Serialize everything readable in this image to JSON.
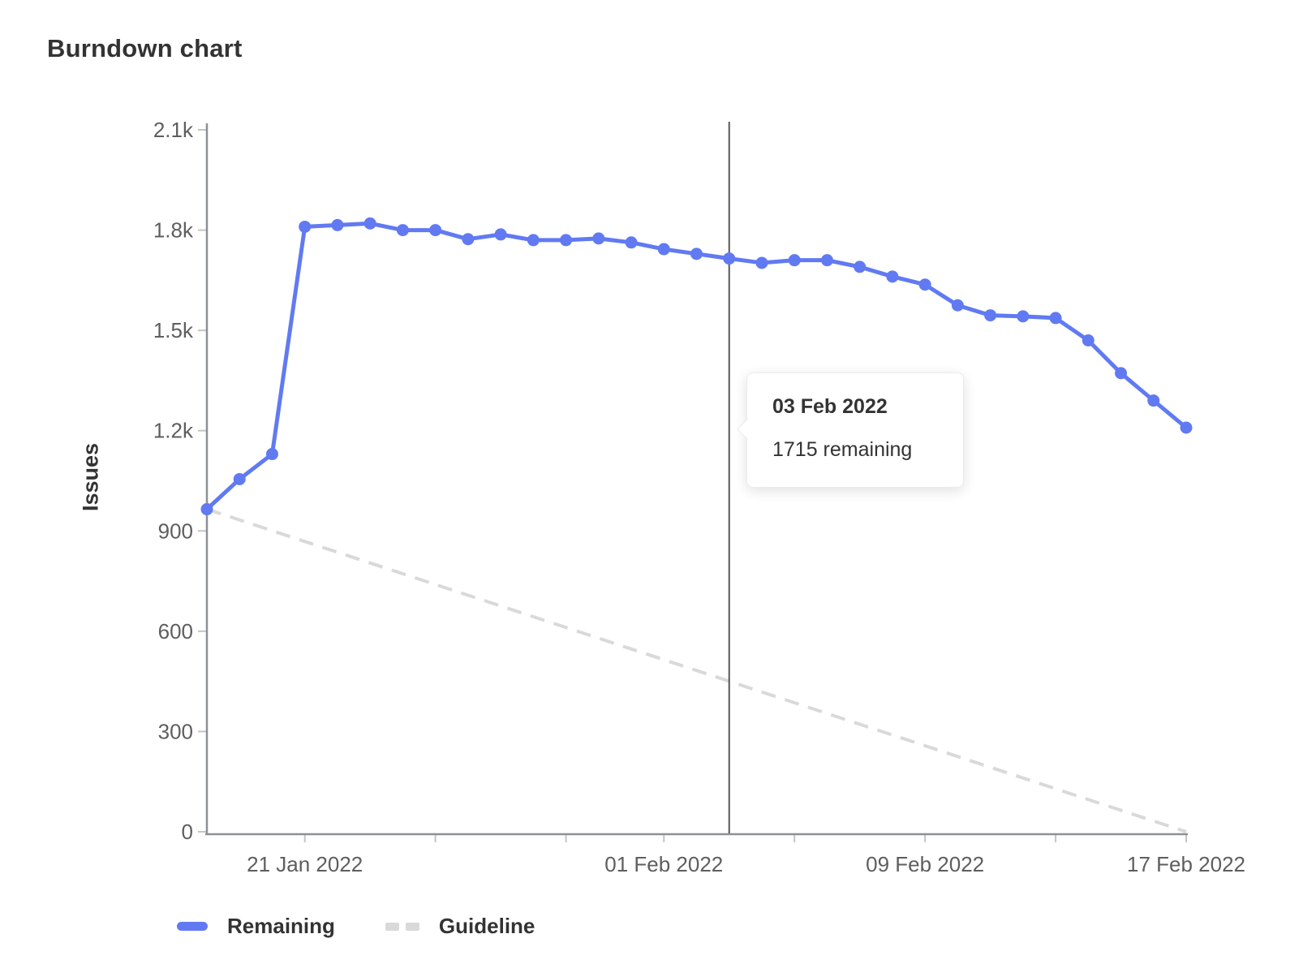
{
  "page": {
    "title": "Burndown chart"
  },
  "ylabel": "Issues",
  "legend": {
    "items": [
      {
        "label": "Remaining"
      },
      {
        "label": "Guideline"
      }
    ]
  },
  "tooltip": {
    "title": "03 Feb 2022",
    "body": "1715 remaining"
  },
  "hover": {
    "day_index": 16
  },
  "colors": {
    "series_blue": "#617af2",
    "guideline": "#d9d9d9",
    "axis": "#8d9096",
    "tick": "#c4c4c4",
    "tick_text": "#5e5e5e",
    "dark_text": "#333333",
    "hover_line": "#54565b"
  },
  "chart_data": {
    "type": "line",
    "title": "Burndown chart",
    "xlabel": "",
    "ylabel": "Issues",
    "ylim": [
      0,
      2100
    ],
    "grid": false,
    "legend_position": "bottom-left",
    "x_dates": [
      "2022-01-18",
      "2022-01-19",
      "2022-01-20",
      "2022-01-21",
      "2022-01-22",
      "2022-01-23",
      "2022-01-24",
      "2022-01-25",
      "2022-01-26",
      "2022-01-27",
      "2022-01-28",
      "2022-01-29",
      "2022-01-30",
      "2022-01-31",
      "2022-02-01",
      "2022-02-02",
      "2022-02-03",
      "2022-02-04",
      "2022-02-05",
      "2022-02-06",
      "2022-02-07",
      "2022-02-08",
      "2022-02-09",
      "2022-02-10",
      "2022-02-11",
      "2022-02-12",
      "2022-02-13",
      "2022-02-14",
      "2022-02-15",
      "2022-02-16",
      "2022-02-17"
    ],
    "series": [
      {
        "name": "Remaining",
        "style": "solid",
        "color": "#617af2",
        "values": [
          965,
          1055,
          1130,
          1810,
          1815,
          1820,
          1800,
          1800,
          1773,
          1787,
          1770,
          1770,
          1775,
          1763,
          1743,
          1729,
          1715,
          1702,
          1710,
          1710,
          1690,
          1661,
          1637,
          1575,
          1545,
          1542,
          1537,
          1470,
          1372,
          1290,
          1209
        ]
      },
      {
        "name": "Guideline",
        "style": "dashed",
        "color": "#d9d9d9",
        "x_indices": [
          0,
          30
        ],
        "values": [
          965,
          0
        ]
      }
    ],
    "yticks": [
      {
        "value": 0,
        "label": "0"
      },
      {
        "value": 300,
        "label": "300"
      },
      {
        "value": 600,
        "label": "600"
      },
      {
        "value": 900,
        "label": "900"
      },
      {
        "value": 1200,
        "label": "1.2k"
      },
      {
        "value": 1500,
        "label": "1.5k"
      },
      {
        "value": 1800,
        "label": "1.8k"
      },
      {
        "value": 2100,
        "label": "2.1k"
      }
    ],
    "xticks": [
      {
        "i": 3,
        "label": "21 Jan 2022"
      },
      {
        "i": 7,
        "label": ""
      },
      {
        "i": 11,
        "label": ""
      },
      {
        "i": 14,
        "label": "01 Feb 2022"
      },
      {
        "i": 18,
        "label": ""
      },
      {
        "i": 22,
        "label": "09 Feb 2022"
      },
      {
        "i": 26,
        "label": ""
      },
      {
        "i": 30,
        "label": "17 Feb 2022"
      }
    ],
    "annotation": {
      "day_index": 16,
      "date": "03 Feb 2022",
      "remaining": 1715
    }
  }
}
